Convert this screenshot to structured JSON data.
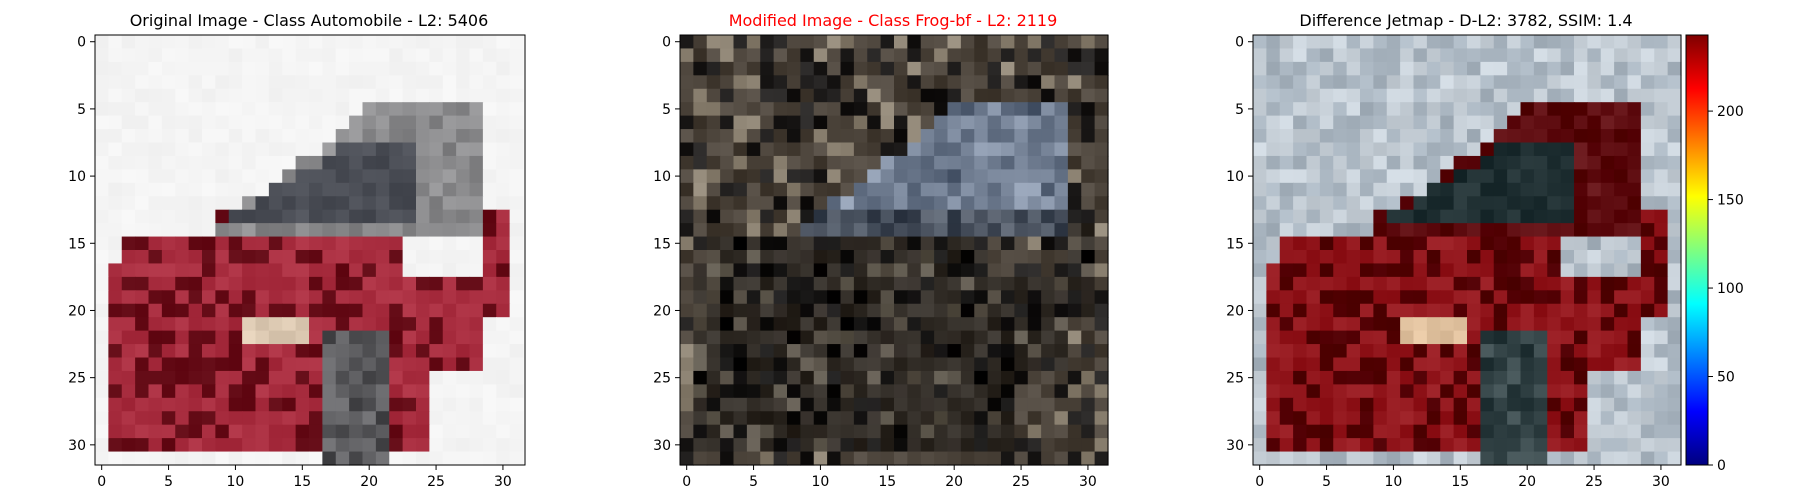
{
  "panels": [
    {
      "title": "Original Image - Class Automobile - L2: 5406",
      "title_color": "#000000",
      "content": "Pixelated 32x32 image of a red hatchback car on a white background",
      "palette": {
        "background": "#f4f4f4",
        "body": "#a3283a",
        "body_dark": "#6e1520",
        "window": "#4b4e56",
        "trim": "#8a8a8c",
        "headlight": "#e0cdb6",
        "tire": "#3b3b3e"
      }
    },
    {
      "title": "Modified Image - Class Frog-bf - L2: 2119",
      "title_color": "#ff0000",
      "content": "Pixelated dark noisy image in grey and brown tones with a faint car silhouette",
      "palette": {
        "background": "#4a4239",
        "noise_light": "#8a8070",
        "noise_dark": "#1e1c1b",
        "blue_patch": "#6e7b8f",
        "shadow": "#14161a"
      }
    },
    {
      "title": "Difference Jetmap - D-L2: 3782, SSIM: 1.4",
      "title_color": "#000000",
      "content": "Pixelated difference map: dark red car on a light blue-grey noisy background",
      "palette": {
        "background": "#a9b5c0",
        "body": "#8c1016",
        "body_dark": "#5c0a0e",
        "window": "#1f2f32",
        "headlight": "#e8c9a6",
        "noise": "#c7d0d8"
      }
    }
  ],
  "axis_ticks": [
    "0",
    "5",
    "10",
    "15",
    "20",
    "25",
    "30"
  ],
  "colorbar": {
    "ticks": [
      "0",
      "50",
      "100",
      "150",
      "200"
    ],
    "colormap": "jet",
    "min": 0,
    "max": 243
  },
  "colors": {
    "jet_stops": [
      "#00007f",
      "#0000ff",
      "#007fff",
      "#00ffff",
      "#7fff7f",
      "#ffff00",
      "#ff7f00",
      "#ff0000",
      "#7f0000"
    ]
  }
}
